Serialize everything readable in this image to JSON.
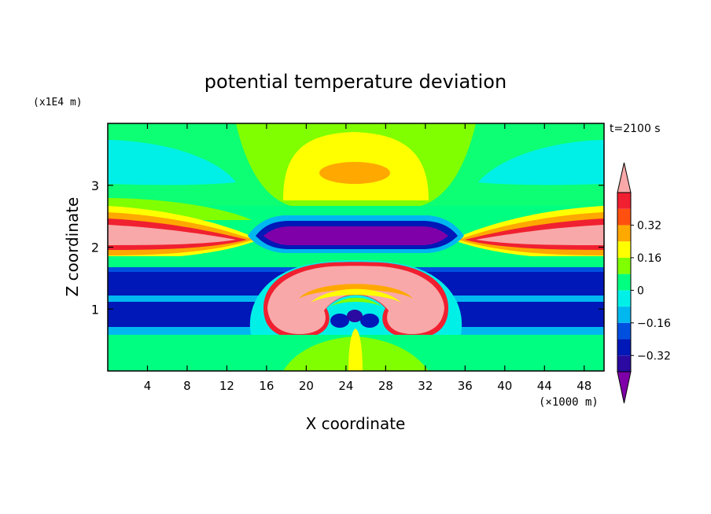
{
  "chart_data": {
    "type": "heatmap",
    "title": "potential temperature deviation",
    "xlabel": "X coordinate",
    "ylabel": "Z coordinate",
    "x_unit": "(×1000 m)",
    "y_unit": "(x1E4 m)",
    "time_label": "t=2100 s",
    "xlim": [
      0,
      50
    ],
    "ylim": [
      0,
      0.4
    ],
    "x_ticks": [
      4,
      8,
      12,
      16,
      20,
      24,
      28,
      32,
      36,
      40,
      44,
      48
    ],
    "y_ticks": [
      1,
      2,
      3
    ],
    "y_tick_values": [
      0.1,
      0.2,
      0.3
    ],
    "colorbar": {
      "labels": [
        "0.32",
        "0.16",
        "0",
        "−0.16",
        "−0.32"
      ],
      "label_values": [
        0.32,
        0.16,
        0,
        -0.16,
        -0.32
      ],
      "bins": [
        {
          "color": "#7f00a8",
          "range": "below -0.40"
        },
        {
          "color": "#2a0aa0",
          "range": "-0.40 to -0.32"
        },
        {
          "color": "#0018b8",
          "range": "-0.32 to -0.24"
        },
        {
          "color": "#0050e0",
          "range": "-0.24 to -0.16"
        },
        {
          "color": "#00b8f0",
          "range": "-0.16 to -0.08"
        },
        {
          "color": "#00f0e8",
          "range": "-0.08 to 0"
        },
        {
          "color": "#00ff80",
          "range": "0 to 0.08"
        },
        {
          "color": "#80ff00",
          "range": "0.08 to 0.16"
        },
        {
          "color": "#ffff00",
          "range": "0.16 to 0.24"
        },
        {
          "color": "#ffa800",
          "range": "0.24 to 0.32"
        },
        {
          "color": "#ff5010",
          "range": "0.32 to 0.40"
        },
        {
          "color": "#f02030",
          "range": "0.40 to 0.48"
        },
        {
          "color": "#f8a8a8",
          "range": "above 0.48"
        }
      ]
    }
  }
}
